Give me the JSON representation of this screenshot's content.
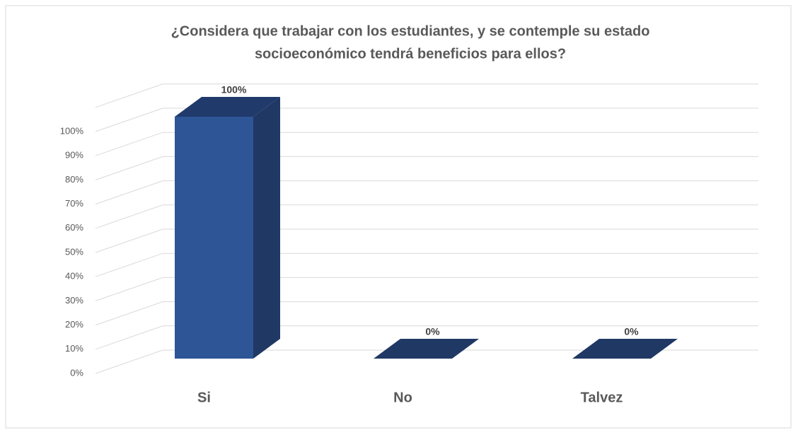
{
  "chart_data": {
    "type": "bar3d",
    "title": [
      "¿Considera que trabajar con los estudiantes, y se contemple su estado",
      "socioeconómico tendrá beneficios para ellos?"
    ],
    "categories": [
      "Si",
      "No",
      "Talvez"
    ],
    "values": [
      100,
      0,
      0
    ],
    "value_labels": [
      "100%",
      "0%",
      "0%"
    ],
    "colors": {
      "front": "#2e5596",
      "side": "#203864",
      "top": "#1f3a6b"
    },
    "ylim": [
      0,
      110
    ],
    "yticks": [
      {
        "value": 0,
        "label": "0%"
      },
      {
        "value": 10,
        "label": "10%"
      },
      {
        "value": 20,
        "label": "20%"
      },
      {
        "value": 30,
        "label": "30%"
      },
      {
        "value": 40,
        "label": "40%"
      },
      {
        "value": 50,
        "label": "50%"
      },
      {
        "value": 60,
        "label": "60%"
      },
      {
        "value": 70,
        "label": "70%"
      },
      {
        "value": 80,
        "label": "80%"
      },
      {
        "value": 90,
        "label": "90%"
      },
      {
        "value": 100,
        "label": "100%"
      }
    ],
    "grid": true
  }
}
